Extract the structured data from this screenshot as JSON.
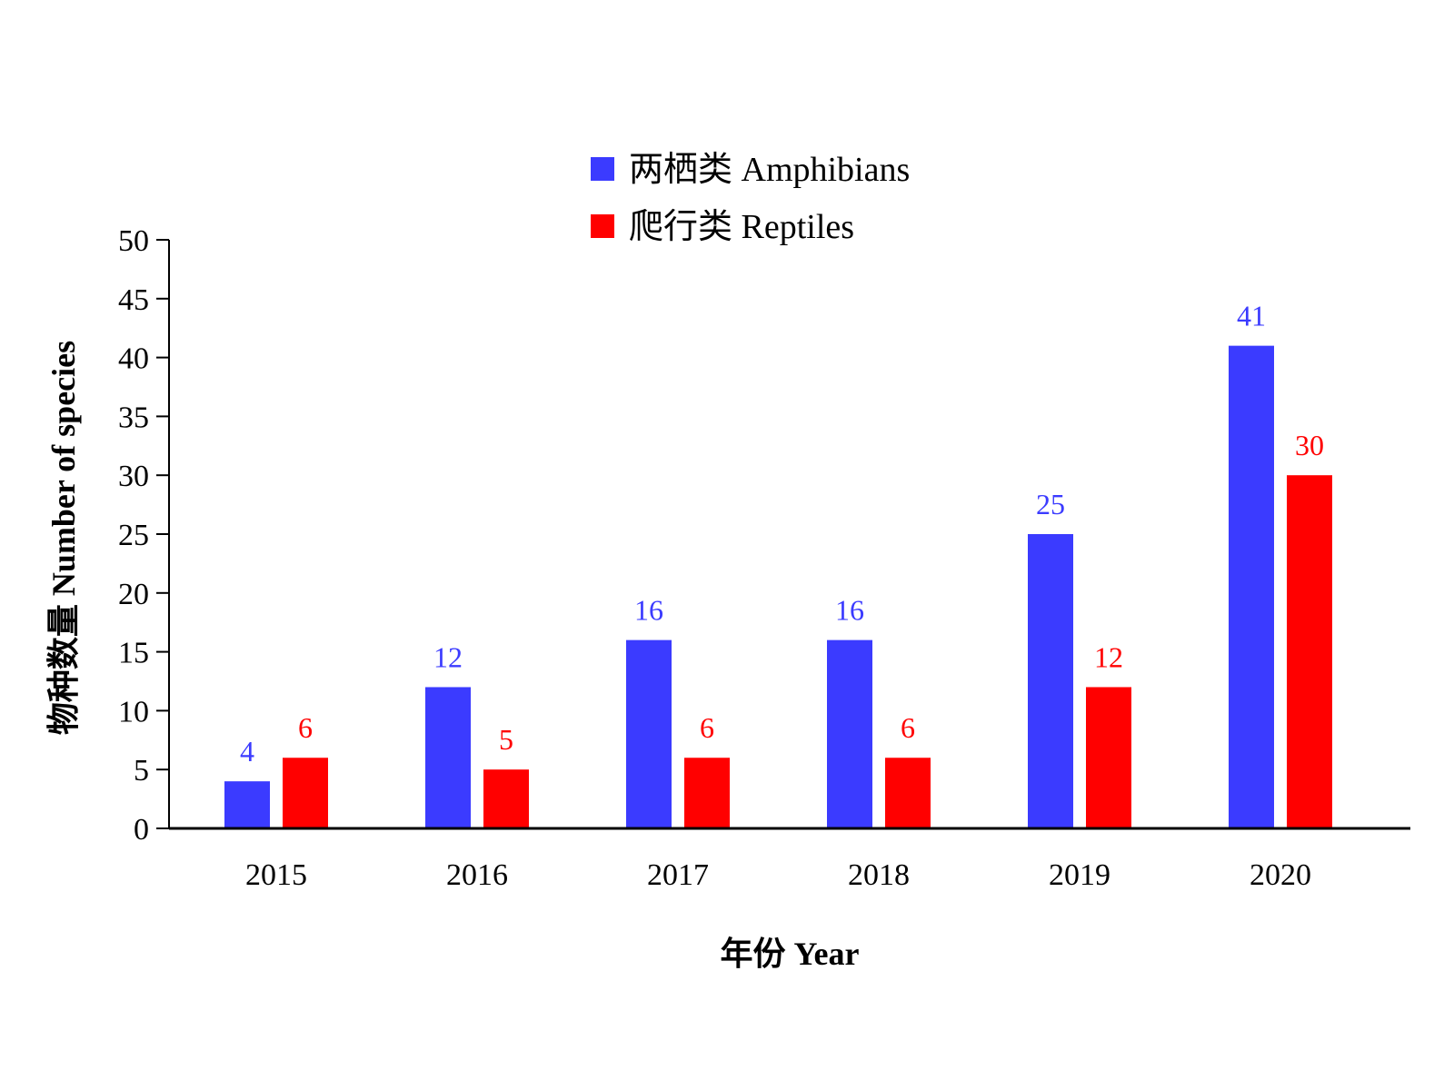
{
  "chart_data": {
    "type": "bar",
    "categories": [
      "2015",
      "2016",
      "2017",
      "2018",
      "2019",
      "2020"
    ],
    "series": [
      {
        "name": "两栖类 Amphibians",
        "values": [
          4,
          12,
          16,
          16,
          25,
          41
        ],
        "color": "#3b3bff"
      },
      {
        "name": "爬行类 Reptiles",
        "values": [
          6,
          5,
          6,
          6,
          12,
          30
        ],
        "color": "#ff0000"
      }
    ],
    "xlabel": "年份 Year",
    "ylabel": "物种数量 Number of species",
    "ylim": [
      0,
      50
    ],
    "yticks": [
      "0",
      "5",
      "10",
      "15",
      "20",
      "25",
      "30",
      "35",
      "40",
      "45",
      "50"
    ],
    "legend_position": "top-center",
    "grid": false
  }
}
